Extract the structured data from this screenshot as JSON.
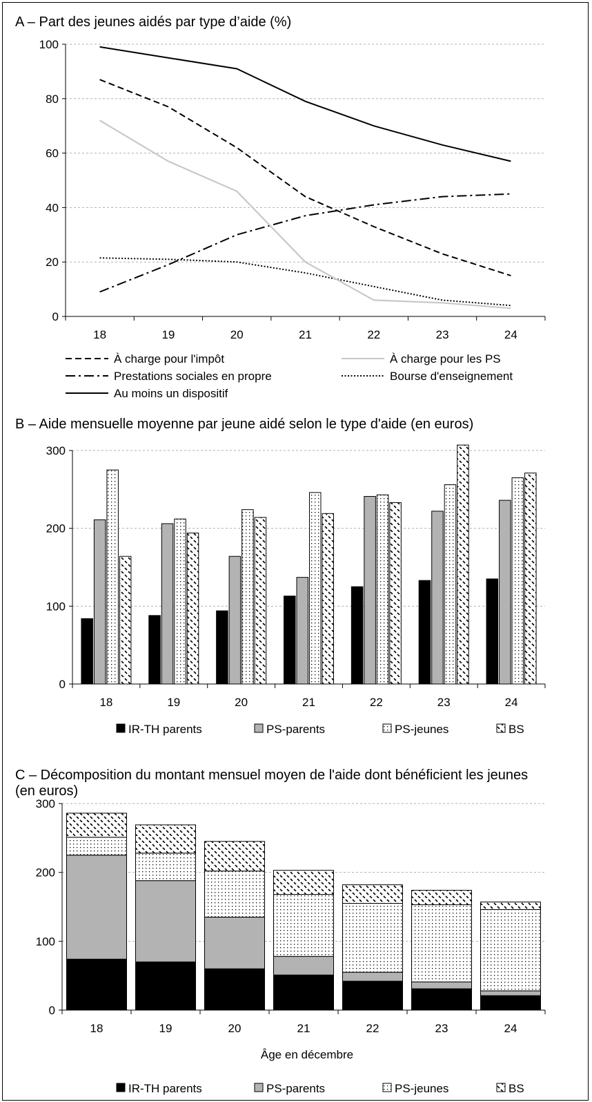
{
  "chart_data": [
    {
      "type": "line",
      "title": "A – Part des jeunes aidés par type d’aide (%)",
      "x": [
        "18",
        "19",
        "20",
        "21",
        "22",
        "23",
        "24"
      ],
      "ylim": [
        0,
        100
      ],
      "yticks": [
        "0",
        "20",
        "40",
        "60",
        "80",
        "100"
      ],
      "grid": true,
      "legend_position": "bottom",
      "series": [
        {
          "name": "À charge pour l'impôt",
          "style": "dashed",
          "color": "#000000",
          "values": [
            87,
            77,
            62,
            44,
            33,
            23,
            15
          ]
        },
        {
          "name": "À charge pour les PS",
          "style": "solid",
          "color": "#c8c8c8",
          "values": [
            72,
            57,
            46,
            20,
            6,
            5,
            3
          ]
        },
        {
          "name": "Prestations sociales en propre",
          "style": "dashdot",
          "color": "#000000",
          "values": [
            9,
            19,
            30,
            37,
            41,
            44,
            45
          ]
        },
        {
          "name": "Bourse d'enseignement",
          "style": "dotted",
          "color": "#000000",
          "values": [
            21.5,
            21,
            20,
            16,
            11,
            6,
            4
          ]
        },
        {
          "name": "Au moins un dispositif",
          "style": "solid",
          "color": "#000000",
          "values": [
            99,
            95,
            91,
            79,
            70,
            63,
            57
          ]
        }
      ]
    },
    {
      "type": "bar",
      "title": "B – Aide mensuelle moyenne par jeune aidé selon le type d'aide (en euros)",
      "categories": [
        "18",
        "19",
        "20",
        "21",
        "22",
        "23",
        "24"
      ],
      "ylim": [
        0,
        300
      ],
      "yticks": [
        "0",
        "100",
        "200",
        "300"
      ],
      "grid": true,
      "legend_position": "bottom",
      "series": [
        {
          "name": "IR-TH parents",
          "fill": "black",
          "values": [
            84,
            88,
            94,
            113,
            125,
            133,
            135
          ]
        },
        {
          "name": "PS-parents",
          "fill": "grey",
          "values": [
            211,
            206,
            164,
            137,
            241,
            222,
            236
          ]
        },
        {
          "name": "PS-jeunes",
          "fill": "dots",
          "values": [
            275,
            212,
            224,
            246,
            243,
            256,
            265
          ]
        },
        {
          "name": "BS",
          "fill": "dashes",
          "values": [
            164,
            194,
            214,
            219,
            233,
            307,
            271
          ]
        }
      ]
    },
    {
      "type": "bar",
      "stacked": true,
      "title": "C – Décomposition du montant mensuel moyen de l'aide dont bénéficient les jeunes",
      "title_line2": "(en euros)",
      "categories": [
        "18",
        "19",
        "20",
        "21",
        "22",
        "23",
        "24"
      ],
      "xlabel": "Âge en décembre",
      "ylim": [
        0,
        300
      ],
      "yticks": [
        "0",
        "100",
        "200",
        "300"
      ],
      "grid": true,
      "legend_position": "bottom",
      "series": [
        {
          "name": "IR-TH parents",
          "fill": "black",
          "values": [
            74,
            70,
            60,
            51,
            42,
            31,
            21
          ]
        },
        {
          "name": "PS-parents",
          "fill": "grey",
          "values": [
            151,
            118,
            75,
            27,
            13,
            10,
            7
          ]
        },
        {
          "name": "PS-jeunes",
          "fill": "dots",
          "values": [
            26,
            40,
            67,
            90,
            100,
            112,
            118
          ]
        },
        {
          "name": "BS",
          "fill": "dashes",
          "values": [
            35,
            41,
            43,
            35,
            27,
            21,
            11
          ]
        }
      ]
    }
  ]
}
